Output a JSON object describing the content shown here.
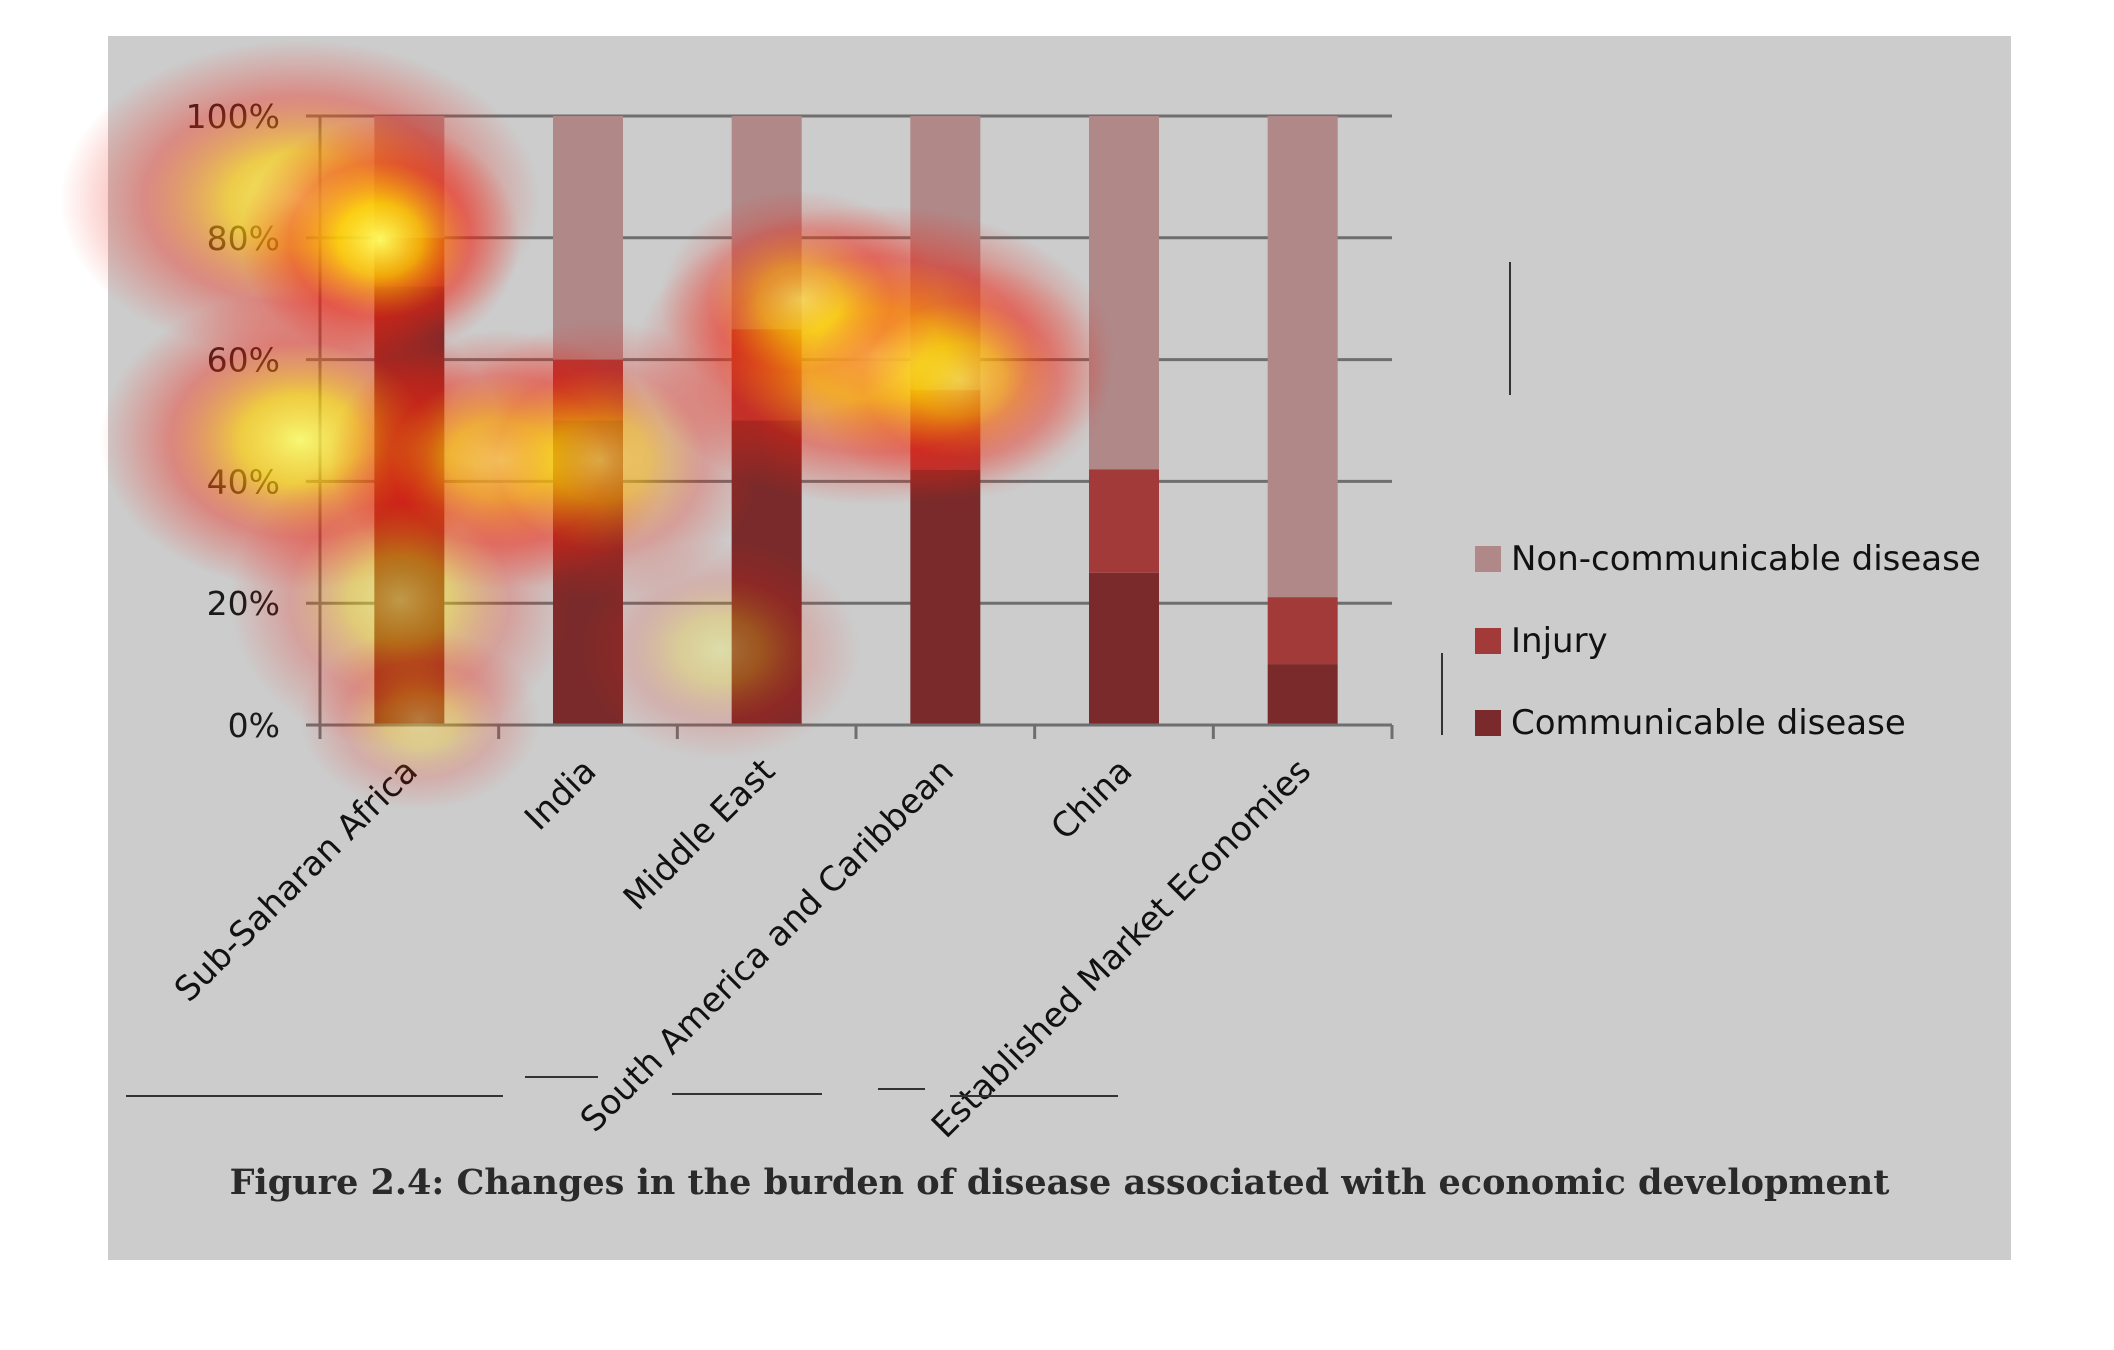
{
  "caption": "Figure 2.4: Changes in the burden of disease associated with economic development",
  "colors": {
    "panel_background": "#cccccc",
    "gridline": "#6e6e6e",
    "heatmap_overlay": "red-yellow eye-tracking heatmap"
  },
  "chart_data": {
    "type": "bar",
    "stacked": true,
    "percent_scale": true,
    "categories": [
      "Sub-Saharan Africa",
      "India",
      "Middle East",
      "South America and Caribbean",
      "China",
      "Established Market Economies"
    ],
    "series": [
      {
        "name": "Communicable disease",
        "color": "#7a2a2a",
        "values": [
          72,
          50,
          50,
          42,
          25,
          10
        ]
      },
      {
        "name": "Injury",
        "color": "#a33a3a",
        "values": [
          8,
          10,
          15,
          13,
          17,
          11
        ]
      },
      {
        "name": "Non-communicable disease",
        "color": "#b08888",
        "values": [
          20,
          40,
          35,
          45,
          58,
          79
        ]
      }
    ],
    "legend_order": [
      "Non-communicable disease",
      "Injury",
      "Communicable disease"
    ],
    "y_ticks": [
      "0%",
      "20%",
      "40%",
      "60%",
      "80%",
      "100%"
    ],
    "ylim": [
      0,
      100
    ],
    "grid": true,
    "legend_position": "right"
  }
}
